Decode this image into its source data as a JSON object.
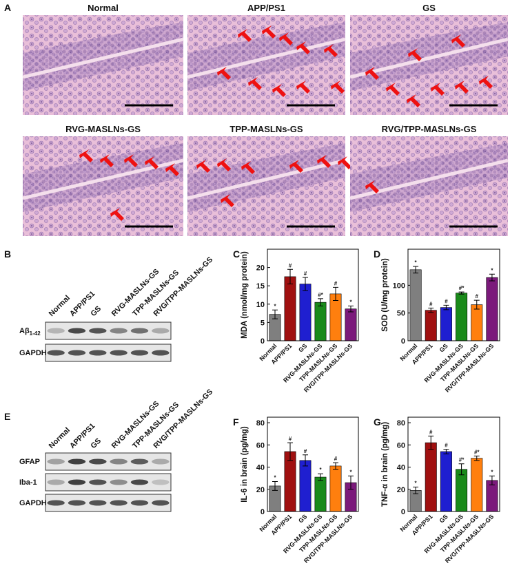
{
  "panel_a": {
    "letter": "A",
    "images": [
      {
        "title": "Normal"
      },
      {
        "title": "APP/PS1"
      },
      {
        "title": "GS"
      },
      {
        "title": "RVG-MASLNs-GS"
      },
      {
        "title": "TPP-MASLNs-GS"
      },
      {
        "title": "RVG/TPP-MASLNs-GS"
      }
    ]
  },
  "panel_b": {
    "letter": "B",
    "lanes": [
      "Normal",
      "APP/PS1",
      "GS",
      "RVG-MASLNs-GS",
      "TPP-MASLNs-GS",
      "RVG/TPP-MASLNs-GS"
    ],
    "rows": [
      {
        "label": "Aβ",
        "sub": "1-42"
      },
      {
        "label": "GAPDH"
      }
    ]
  },
  "panel_e": {
    "letter": "E",
    "lanes": [
      "Normal",
      "APP/PS1",
      "GS",
      "RVG-MASLNs-GS",
      "TPP-MASLNs-GS",
      "RVG/TPP-MASLNs-GS"
    ],
    "rows": [
      {
        "label": "GFAP"
      },
      {
        "label": "Iba-1"
      },
      {
        "label": "GAPDH"
      }
    ]
  },
  "chart_data": [
    {
      "type": "bar",
      "panel": "C",
      "ylabel": "MDA (nmol/mg protein)",
      "categories": [
        "Normal",
        "APP/PS1",
        "GS",
        "RVG-MASLNs-GS",
        "TPP-MASLNs-GS",
        "RVG/TPP-MASLNs-GS"
      ],
      "values": [
        7.2,
        17.5,
        15.5,
        10.5,
        12.8,
        8.7
      ],
      "errors": [
        1.2,
        2,
        1.8,
        1,
        1.8,
        0.8
      ],
      "annotations": [
        "*",
        "#",
        "#",
        "#*",
        "#",
        "*"
      ],
      "colors": [
        "#7f7f7f",
        "#a01010",
        "#1f1fd0",
        "#1a8a1a",
        "#ff7f0e",
        "#7b1a7b"
      ],
      "ylim": [
        0,
        25
      ],
      "yticks": [
        0,
        5,
        10,
        15,
        20
      ]
    },
    {
      "type": "bar",
      "panel": "D",
      "ylabel": "SOD (U/mg protein)",
      "categories": [
        "Normal",
        "APP/PS1",
        "GS",
        "RVG-MASLNs-GS",
        "TPP-MASLNs-GS",
        "RVG/TPP-MASLNs-GS"
      ],
      "values": [
        128,
        55,
        60,
        86,
        65,
        114
      ],
      "errors": [
        6,
        4,
        4,
        2,
        8,
        6
      ],
      "annotations": [
        "*",
        "#",
        "#",
        "#*",
        "#",
        "*"
      ],
      "colors": [
        "#7f7f7f",
        "#a01010",
        "#1f1fd0",
        "#1a8a1a",
        "#ff7f0e",
        "#7b1a7b"
      ],
      "ylim": [
        0,
        165
      ],
      "yticks": [
        0,
        50,
        100
      ]
    },
    {
      "type": "bar",
      "panel": "F",
      "ylabel": "IL-6 in brain (pg/mg)",
      "categories": [
        "Normal",
        "APP/PS1",
        "GS",
        "RVG-MASLNs-GS",
        "TPP-MASLNs-GS",
        "RVG/TPP-MASLNs-GS"
      ],
      "values": [
        23,
        54,
        46,
        31,
        41,
        26
      ],
      "errors": [
        4,
        8,
        5,
        3,
        3,
        6
      ],
      "annotations": [
        "*",
        "#",
        "#",
        "*",
        "#",
        "*"
      ],
      "colors": [
        "#7f7f7f",
        "#a01010",
        "#1f1fd0",
        "#1a8a1a",
        "#ff7f0e",
        "#7b1a7b"
      ],
      "ylim": [
        0,
        85
      ],
      "yticks": [
        0,
        20,
        40,
        60,
        80
      ]
    },
    {
      "type": "bar",
      "panel": "G",
      "ylabel": "TNF-α  in brain (pg/mg)",
      "categories": [
        "Normal",
        "APP/PS1",
        "GS",
        "RVG-MASLNs-GS",
        "TPP-MASLNs-GS",
        "RVG/TPP-MASLNs-GS"
      ],
      "values": [
        19,
        62,
        54,
        38,
        48,
        28
      ],
      "errors": [
        3,
        6,
        2,
        5,
        2,
        4
      ],
      "annotations": [
        "*",
        "#",
        "#",
        "#*",
        "#*",
        "*"
      ],
      "colors": [
        "#7f7f7f",
        "#a01010",
        "#1f1fd0",
        "#1a8a1a",
        "#ff7f0e",
        "#7b1a7b"
      ],
      "ylim": [
        0,
        85
      ],
      "yticks": [
        0,
        20,
        40,
        60,
        80
      ]
    }
  ]
}
